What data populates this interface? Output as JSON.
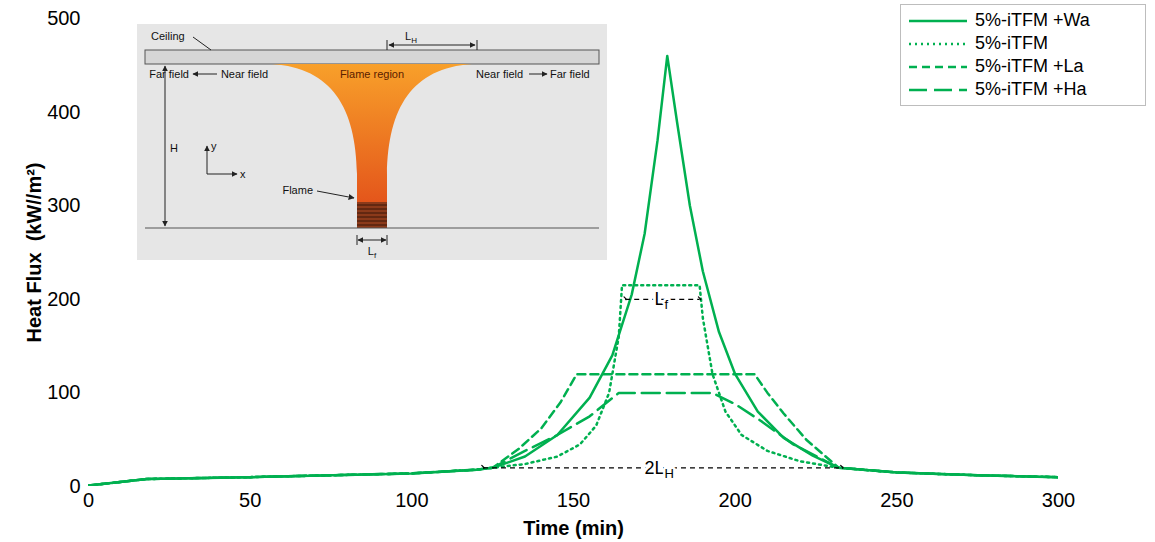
{
  "chart_data": {
    "type": "line",
    "x_label": "Time (min)",
    "y_label": "Heat Flux  (kW//m²)",
    "xlim": [
      0,
      300
    ],
    "xticks": [
      0,
      50,
      100,
      150,
      200,
      250,
      300
    ],
    "ylim": [
      0,
      500
    ],
    "yticks": [
      0,
      100,
      200,
      300,
      400,
      500
    ],
    "grid": false,
    "legend": "top-right",
    "series": [
      {
        "name": "5%-iTFM +Wa",
        "color": "#00b050",
        "line_style": "solid",
        "x": [
          0,
          18,
          50,
          100,
          120,
          125,
          135,
          145,
          155,
          162,
          168,
          172,
          176,
          179,
          182,
          186,
          190,
          195,
          200,
          207,
          215,
          224,
          232,
          250,
          275,
          300
        ],
        "values": [
          1,
          8,
          10,
          14,
          18,
          20,
          32,
          55,
          95,
          140,
          205,
          270,
          370,
          460,
          390,
          300,
          230,
          165,
          120,
          80,
          52,
          33,
          20,
          15,
          12,
          10
        ]
      },
      {
        "name": "5%-iTFM",
        "color": "#00b050",
        "line_style": "dotted",
        "x": [
          0,
          18,
          50,
          100,
          120,
          125,
          135,
          145,
          152,
          157,
          161,
          164,
          165,
          189,
          190,
          193,
          197,
          202,
          210,
          220,
          232,
          250,
          275,
          300
        ],
        "values": [
          1,
          8,
          10,
          14,
          18,
          20,
          24,
          32,
          45,
          65,
          100,
          160,
          215,
          215,
          180,
          120,
          80,
          55,
          38,
          27,
          20,
          15,
          12,
          10
        ]
      },
      {
        "name": "5%-iTFM +La",
        "color": "#00b050",
        "line_style": "dashed",
        "x": [
          0,
          18,
          50,
          100,
          120,
          125,
          133,
          140,
          146,
          151,
          206,
          210,
          215,
          222,
          232,
          250,
          275,
          300
        ],
        "values": [
          1,
          8,
          10,
          14,
          18,
          20,
          40,
          62,
          90,
          120,
          120,
          100,
          78,
          50,
          20,
          15,
          12,
          10
        ]
      },
      {
        "name": "5%-iTFM +Ha",
        "color": "#00b050",
        "line_style": "longdash",
        "x": [
          0,
          18,
          50,
          100,
          120,
          125,
          135,
          145,
          155,
          164,
          193,
          200,
          208,
          218,
          232,
          250,
          275,
          300
        ],
        "values": [
          1,
          8,
          10,
          14,
          18,
          20,
          38,
          55,
          75,
          100,
          100,
          88,
          70,
          45,
          20,
          15,
          12,
          10
        ]
      }
    ],
    "annotations": [
      {
        "text": "L",
        "sub": "f",
        "x1": 166,
        "x2": 189,
        "y": 200
      },
      {
        "text": "2L",
        "sub": "H",
        "x1": 122,
        "x2": 233,
        "y": 20
      }
    ],
    "inset": {
      "ceiling": "Ceiling",
      "flame_region": "Flame region",
      "flame": "Flame",
      "far_field": "Far field",
      "near_field": "Near field",
      "h": "H",
      "y": "y",
      "x": "x",
      "lh": {
        "text": "L",
        "sub": "H"
      },
      "lf": {
        "text": "L",
        "sub": "f"
      }
    }
  }
}
